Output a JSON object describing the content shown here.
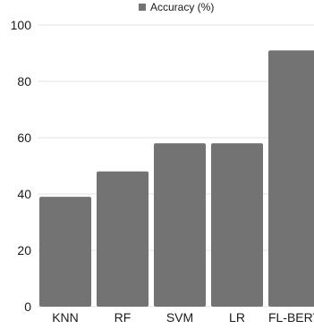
{
  "chart_data": {
    "type": "bar",
    "categories": [
      "KNN",
      "RF",
      "SVM",
      "LR",
      "FL-BERT"
    ],
    "series": [
      {
        "name": "Accuracy (%)",
        "values": [
          39,
          48,
          58,
          58,
          91
        ]
      }
    ],
    "ylim": [
      0,
      100
    ],
    "yticks": [
      0,
      20,
      40,
      60,
      80,
      100
    ],
    "grid": true,
    "legend": "top-center",
    "colors": {
      "bar": "#737373",
      "grid": "#e3e3e3",
      "text": "#1a1a1a"
    }
  }
}
